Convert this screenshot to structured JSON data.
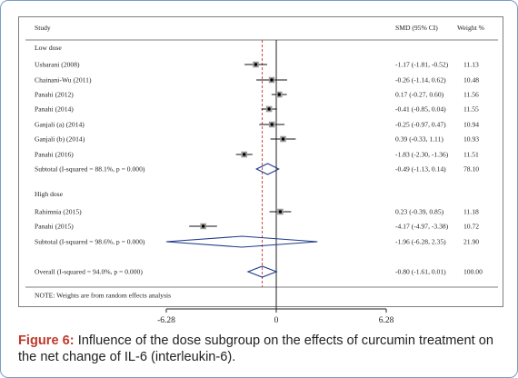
{
  "figure": {
    "label": "Figure 6:",
    "text": "Influence of the dose subgroup on the effects of curcumin treatment on the net change of IL-6 (interleukin-6)."
  },
  "chart_data": {
    "type": "forest",
    "headers": {
      "study": "Study",
      "effect": "SMD (95% CI)",
      "weight": "Weight %"
    },
    "x_ticks": [
      -6.28,
      0,
      6.28
    ],
    "x_tick_labels": [
      "-6.28",
      "0",
      "6.28"
    ],
    "xlim": [
      -6.28,
      6.28
    ],
    "overall_reference": -0.8,
    "groups": [
      {
        "title": "Low dose",
        "studies": [
          {
            "label": "Usharani (2008)",
            "est": -1.17,
            "lo": -1.81,
            "hi": -0.52,
            "text": "-1.17 (-1.81, -0.52)",
            "weight": "11.13"
          },
          {
            "label": "Chainani-Wu (2011)",
            "est": -0.26,
            "lo": -1.14,
            "hi": 0.62,
            "text": "-0.26 (-1.14, 0.62)",
            "weight": "10.48"
          },
          {
            "label": "Panahi (2012)",
            "est": 0.17,
            "lo": -0.27,
            "hi": 0.6,
            "text": "0.17 (-0.27, 0.60)",
            "weight": "11.56"
          },
          {
            "label": "Panahi (2014)",
            "est": -0.41,
            "lo": -0.85,
            "hi": 0.04,
            "text": "-0.41 (-0.85, 0.04)",
            "weight": "11.55"
          },
          {
            "label": "Ganjali (a) (2014)",
            "est": -0.25,
            "lo": -0.97,
            "hi": 0.47,
            "text": "-0.25 (-0.97, 0.47)",
            "weight": "10.94"
          },
          {
            "label": "Ganjali (b) (2014)",
            "est": 0.39,
            "lo": -0.33,
            "hi": 1.11,
            "text": "0.39 (-0.33, 1.11)",
            "weight": "10.93"
          },
          {
            "label": "Panahi (2016)",
            "est": -1.83,
            "lo": -2.3,
            "hi": -1.36,
            "text": "-1.83 (-2.30, -1.36)",
            "weight": "11.51"
          }
        ],
        "subtotal": {
          "label": "Subtotal  (I-squared = 88.1%, p = 0.000)",
          "est": -0.49,
          "lo": -1.13,
          "hi": 0.14,
          "text": "-0.49 (-1.13, 0.14)",
          "weight": "78.10"
        }
      },
      {
        "title": "High dose",
        "studies": [
          {
            "label": "Rahimnia (2015)",
            "est": 0.23,
            "lo": -0.39,
            "hi": 0.85,
            "text": "0.23 (-0.39, 0.85)",
            "weight": "11.18"
          },
          {
            "label": "Panahi (2015)",
            "est": -4.17,
            "lo": -4.97,
            "hi": -3.38,
            "text": "-4.17 (-4.97, -3.38)",
            "weight": "10.72"
          }
        ],
        "subtotal": {
          "label": "Subtotal  (I-squared = 98.6%, p = 0.000)",
          "est": -1.96,
          "lo": -6.28,
          "hi": 2.35,
          "text": "-1.96 (-6.28, 2.35)",
          "weight": "21.90"
        }
      }
    ],
    "overall": {
      "label": "Overall  (I-squared = 94.0%, p = 0.000)",
      "est": -0.8,
      "lo": -1.61,
      "hi": 0.01,
      "text": "-0.80 (-1.61, 0.01)",
      "weight": "100.00"
    },
    "note": "NOTE: Weights are from random effects analysis"
  }
}
